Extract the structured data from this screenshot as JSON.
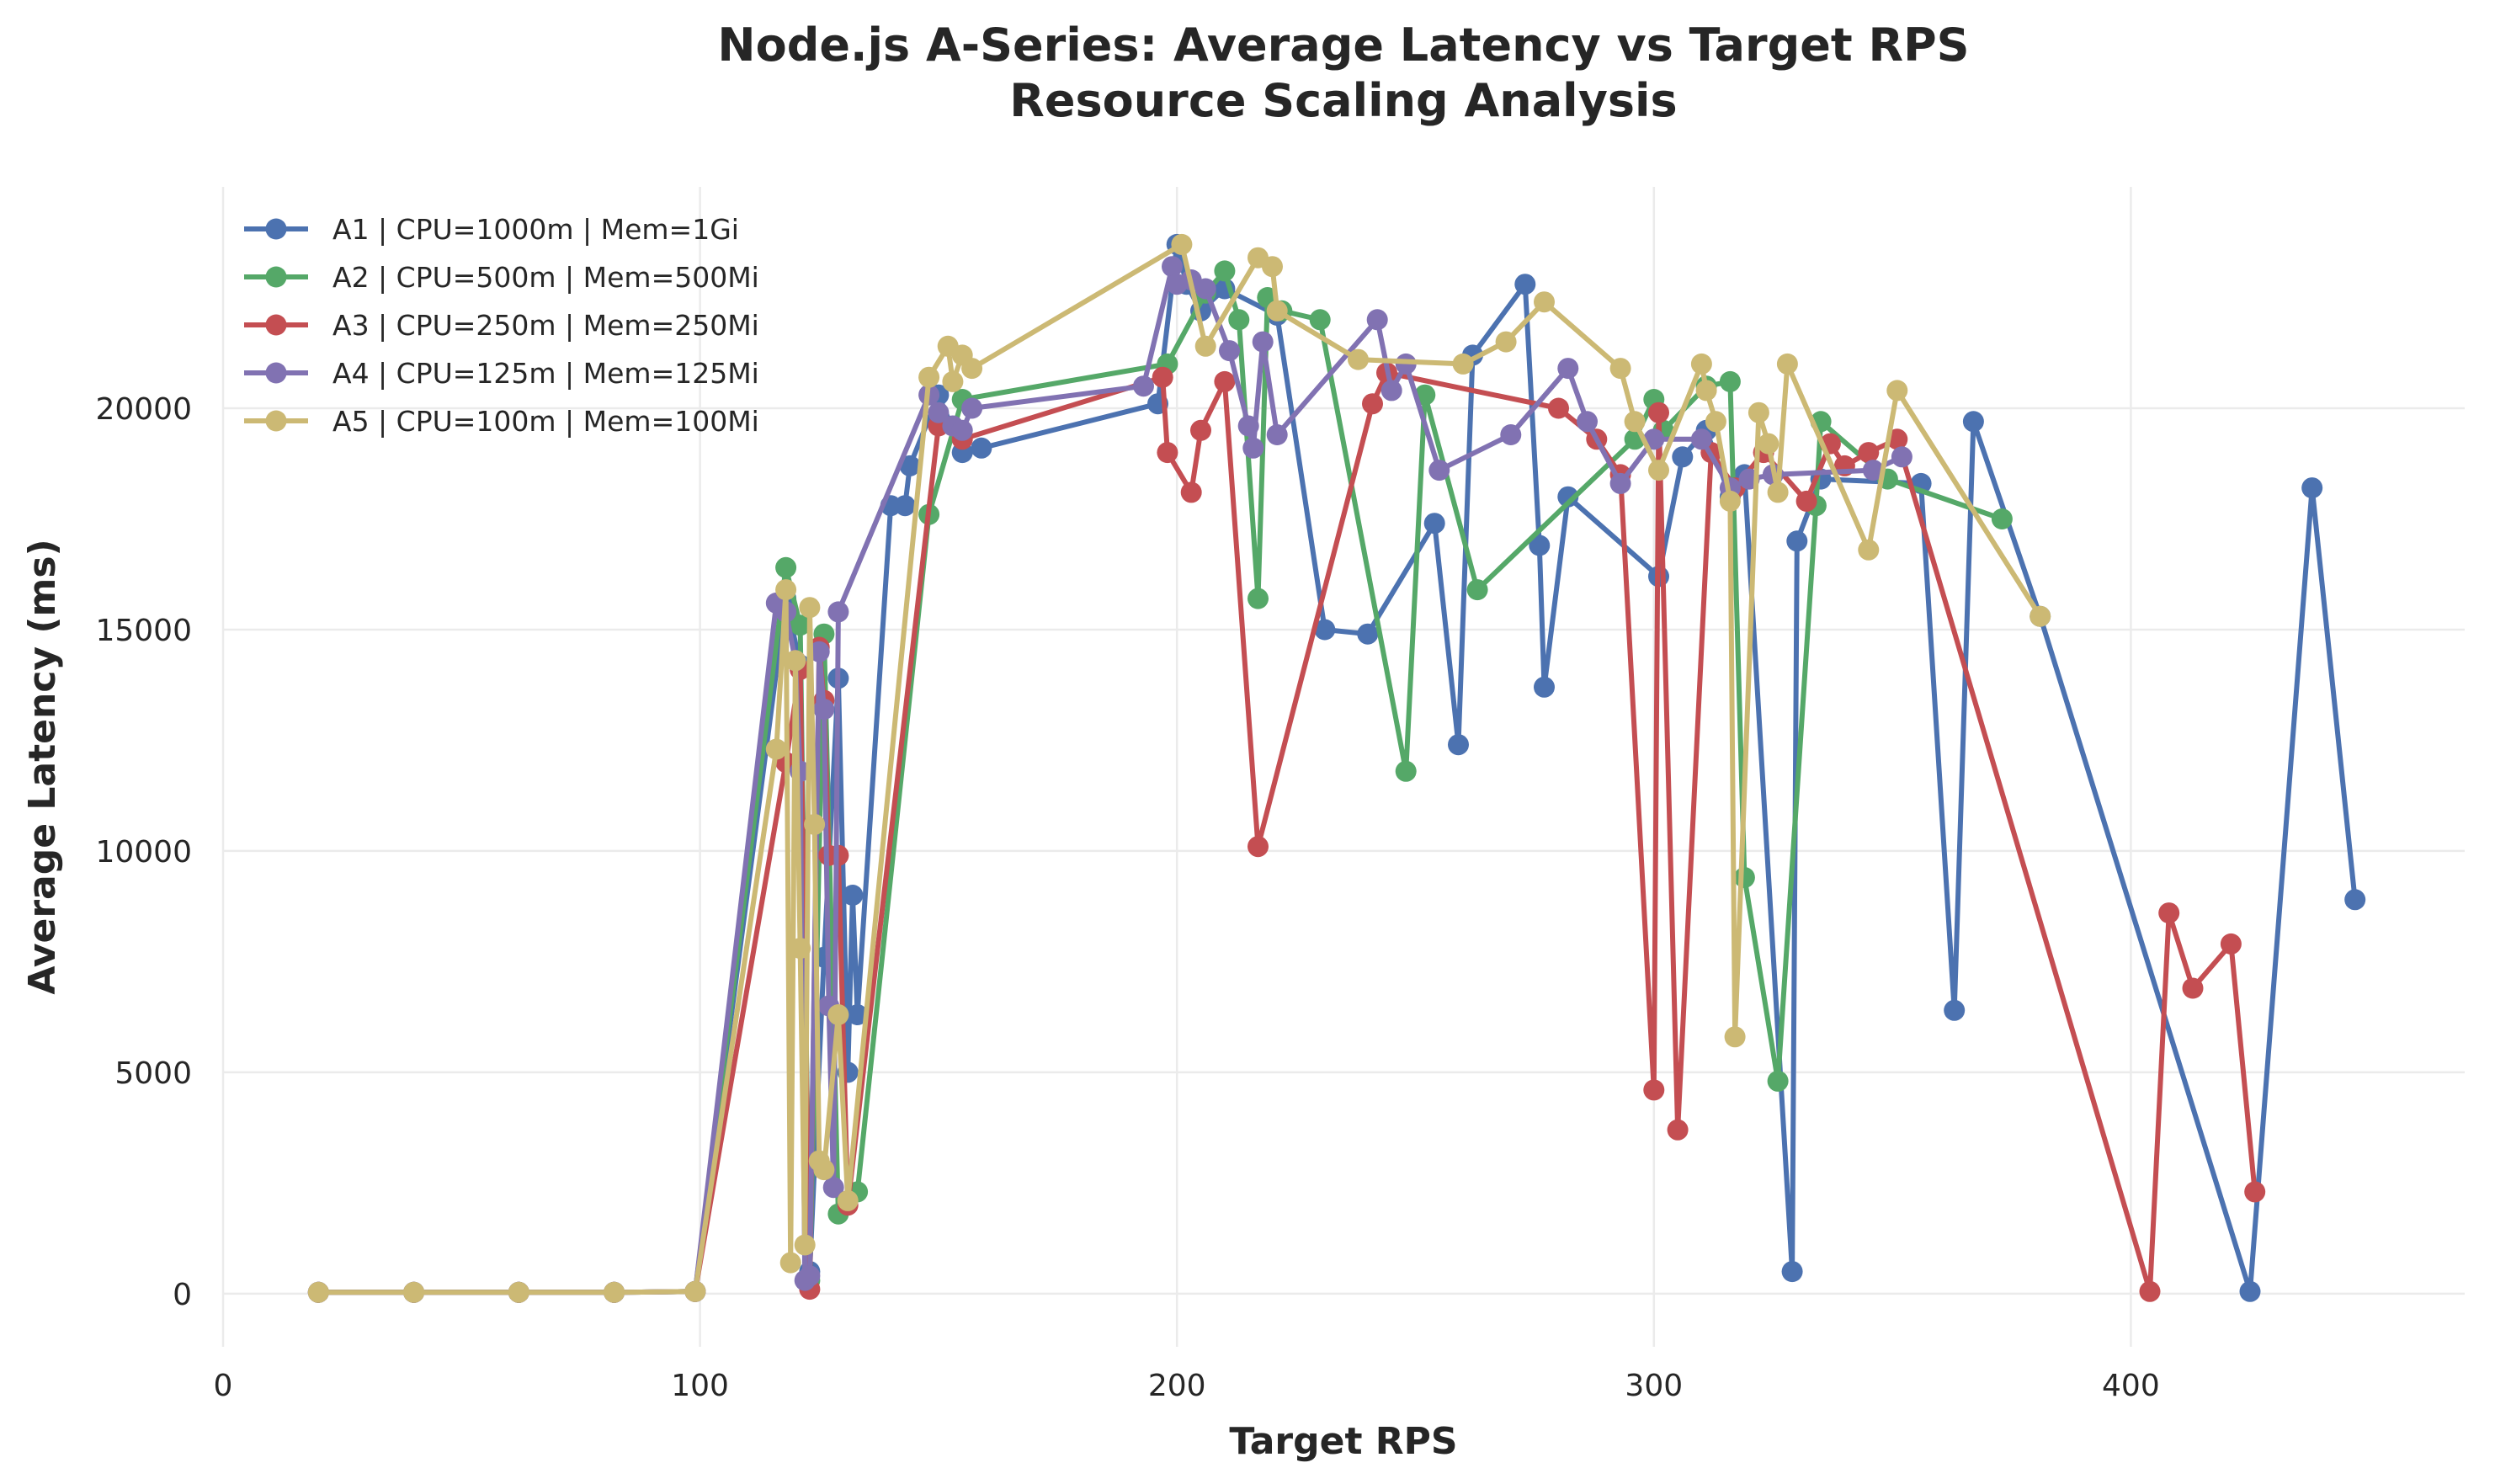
{
  "chart_data": {
    "type": "line",
    "title": "Node.js A-Series: Average Latency vs Target RPS",
    "subtitle": "Resource Scaling Analysis",
    "xlabel": "Target RPS",
    "ylabel": "Average Latency (ms)",
    "xlim": [
      0,
      470
    ],
    "ylim": [
      -1200,
      25000
    ],
    "xticks": [
      0,
      100,
      200,
      300,
      400
    ],
    "yticks": [
      0,
      5000,
      10000,
      15000,
      20000
    ],
    "x_tick_labels": [
      "0",
      "100",
      "200",
      "300",
      "400"
    ],
    "y_tick_labels": [
      "0",
      "5000",
      "10000",
      "15000",
      "20000"
    ],
    "grid": true,
    "legend_position": "top-left",
    "series": [
      {
        "name": "A1 | CPU=1000m | Mem=1Gi",
        "color": "#4c72b0",
        "points": [
          [
            20,
            30
          ],
          [
            40,
            30
          ],
          [
            62,
            30
          ],
          [
            82,
            30
          ],
          [
            99,
            50
          ],
          [
            118,
            15700
          ],
          [
            121,
            14200
          ],
          [
            123,
            500
          ],
          [
            126,
            7600
          ],
          [
            129,
            13900
          ],
          [
            131,
            5000
          ],
          [
            132,
            9000
          ],
          [
            133,
            6300
          ],
          [
            140,
            17800
          ],
          [
            143,
            17800
          ],
          [
            144,
            18700
          ],
          [
            150,
            20300
          ],
          [
            155,
            19000
          ],
          [
            159,
            19100
          ],
          [
            196,
            20100
          ],
          [
            200,
            23700
          ],
          [
            202,
            22800
          ],
          [
            205,
            22200
          ],
          [
            210,
            22700
          ],
          [
            221,
            22100
          ],
          [
            231,
            15000
          ],
          [
            240,
            14900
          ],
          [
            254,
            17400
          ],
          [
            259,
            12400
          ],
          [
            262,
            21200
          ],
          [
            273,
            22800
          ],
          [
            276,
            16900
          ],
          [
            277,
            13700
          ],
          [
            282,
            18000
          ],
          [
            301,
            16200
          ],
          [
            306,
            18900
          ],
          [
            311,
            19500
          ],
          [
            316,
            18000
          ],
          [
            319,
            18500
          ],
          [
            329,
            500
          ],
          [
            330,
            17000
          ],
          [
            335,
            18400
          ],
          [
            356,
            18300
          ],
          [
            363,
            6400
          ],
          [
            367,
            19700
          ],
          [
            381,
            15300
          ],
          [
            425,
            50
          ],
          [
            438,
            18200
          ],
          [
            447,
            8900
          ]
        ]
      },
      {
        "name": "A2 | CPU=500m | Mem=500Mi",
        "color": "#55a868",
        "points": [
          [
            20,
            30
          ],
          [
            40,
            30
          ],
          [
            62,
            30
          ],
          [
            82,
            30
          ],
          [
            99,
            50
          ],
          [
            118,
            16400
          ],
          [
            121,
            15100
          ],
          [
            123,
            300
          ],
          [
            126,
            14900
          ],
          [
            129,
            1800
          ],
          [
            133,
            2300
          ],
          [
            148,
            17600
          ],
          [
            155,
            20200
          ],
          [
            198,
            21000
          ],
          [
            206,
            22600
          ],
          [
            210,
            23100
          ],
          [
            213,
            22000
          ],
          [
            217,
            15700
          ],
          [
            219,
            22500
          ],
          [
            222,
            22200
          ],
          [
            230,
            22000
          ],
          [
            248,
            11800
          ],
          [
            252,
            20300
          ],
          [
            263,
            15900
          ],
          [
            296,
            19300
          ],
          [
            300,
            20200
          ],
          [
            302,
            19500
          ],
          [
            311,
            20500
          ],
          [
            316,
            20600
          ],
          [
            319,
            9400
          ],
          [
            326,
            4800
          ],
          [
            334,
            17800
          ],
          [
            335,
            19700
          ],
          [
            349,
            18400
          ],
          [
            373,
            17500
          ]
        ]
      },
      {
        "name": "A3 | CPU=250m | Mem=250Mi",
        "color": "#c44e52",
        "points": [
          [
            20,
            30
          ],
          [
            40,
            30
          ],
          [
            62,
            30
          ],
          [
            82,
            30
          ],
          [
            99,
            50
          ],
          [
            118,
            12000
          ],
          [
            121,
            14100
          ],
          [
            123,
            100
          ],
          [
            125,
            14600
          ],
          [
            126,
            13400
          ],
          [
            127,
            9900
          ],
          [
            129,
            9900
          ],
          [
            131,
            2000
          ],
          [
            150,
            19600
          ],
          [
            155,
            19300
          ],
          [
            197,
            20700
          ],
          [
            198,
            19000
          ],
          [
            203,
            18100
          ],
          [
            205,
            19500
          ],
          [
            210,
            20600
          ],
          [
            217,
            10100
          ],
          [
            241,
            20100
          ],
          [
            244,
            20800
          ],
          [
            280,
            20000
          ],
          [
            288,
            19300
          ],
          [
            293,
            18500
          ],
          [
            300,
            4600
          ],
          [
            301,
            19900
          ],
          [
            305,
            3700
          ],
          [
            312,
            19000
          ],
          [
            317,
            18200
          ],
          [
            323,
            19000
          ],
          [
            332,
            17900
          ],
          [
            337,
            19200
          ],
          [
            340,
            18700
          ],
          [
            345,
            19000
          ],
          [
            351,
            19300
          ],
          [
            404,
            50
          ],
          [
            408,
            8600
          ],
          [
            413,
            6900
          ],
          [
            421,
            7900
          ],
          [
            426,
            2300
          ]
        ]
      },
      {
        "name": "A4 | CPU=125m | Mem=125Mi",
        "color": "#8172b2",
        "points": [
          [
            20,
            30
          ],
          [
            40,
            30
          ],
          [
            62,
            30
          ],
          [
            82,
            30
          ],
          [
            99,
            50
          ],
          [
            116,
            15600
          ],
          [
            118,
            15400
          ],
          [
            120,
            14300
          ],
          [
            121,
            11800
          ],
          [
            122,
            300
          ],
          [
            123,
            400
          ],
          [
            125,
            14500
          ],
          [
            126,
            13200
          ],
          [
            127,
            6500
          ],
          [
            128,
            2400
          ],
          [
            129,
            15400
          ],
          [
            148,
            20300
          ],
          [
            150,
            19900
          ],
          [
            153,
            19600
          ],
          [
            155,
            19500
          ],
          [
            157,
            20000
          ],
          [
            193,
            20500
          ],
          [
            199,
            23200
          ],
          [
            200,
            22800
          ],
          [
            203,
            22900
          ],
          [
            206,
            22700
          ],
          [
            211,
            21300
          ],
          [
            215,
            19600
          ],
          [
            216,
            19100
          ],
          [
            218,
            21500
          ],
          [
            221,
            19400
          ],
          [
            242,
            22000
          ],
          [
            245,
            20400
          ],
          [
            248,
            21000
          ],
          [
            255,
            18600
          ],
          [
            270,
            19400
          ],
          [
            282,
            20900
          ],
          [
            286,
            19700
          ],
          [
            293,
            18300
          ],
          [
            300,
            19300
          ],
          [
            310,
            19300
          ],
          [
            316,
            18200
          ],
          [
            320,
            18400
          ],
          [
            325,
            18500
          ],
          [
            346,
            18600
          ],
          [
            352,
            18900
          ]
        ]
      },
      {
        "name": "A5 | CPU=100m | Mem=100Mi",
        "color": "#ccb974",
        "points": [
          [
            20,
            30
          ],
          [
            40,
            30
          ],
          [
            62,
            30
          ],
          [
            82,
            30
          ],
          [
            99,
            50
          ],
          [
            116,
            12300
          ],
          [
            118,
            15900
          ],
          [
            119,
            700
          ],
          [
            120,
            14300
          ],
          [
            121,
            7800
          ],
          [
            122,
            1100
          ],
          [
            123,
            15500
          ],
          [
            124,
            10600
          ],
          [
            125,
            3000
          ],
          [
            126,
            2800
          ],
          [
            129,
            6300
          ],
          [
            131,
            2100
          ],
          [
            148,
            20700
          ],
          [
            152,
            21400
          ],
          [
            153,
            20600
          ],
          [
            155,
            21200
          ],
          [
            157,
            20900
          ],
          [
            201,
            23700
          ],
          [
            206,
            21400
          ],
          [
            217,
            23400
          ],
          [
            220,
            23200
          ],
          [
            221,
            22200
          ],
          [
            238,
            21100
          ],
          [
            260,
            21000
          ],
          [
            269,
            21500
          ],
          [
            277,
            22400
          ],
          [
            293,
            20900
          ],
          [
            296,
            19700
          ],
          [
            301,
            18600
          ],
          [
            310,
            21000
          ],
          [
            311,
            20400
          ],
          [
            313,
            19700
          ],
          [
            316,
            17900
          ],
          [
            317,
            5800
          ],
          [
            322,
            19900
          ],
          [
            324,
            19200
          ],
          [
            326,
            18100
          ],
          [
            328,
            21000
          ],
          [
            345,
            16800
          ],
          [
            351,
            20400
          ],
          [
            381,
            15300
          ]
        ]
      }
    ]
  }
}
